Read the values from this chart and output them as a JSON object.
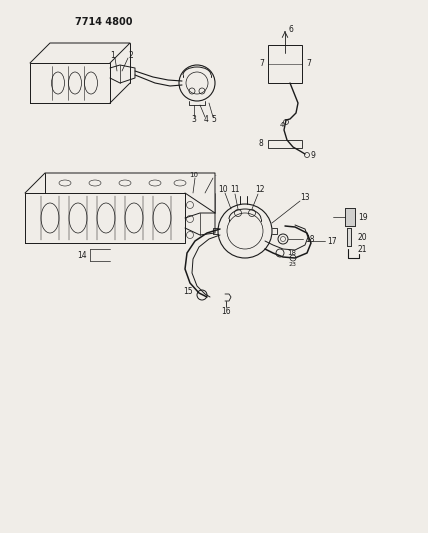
{
  "title": "7714 4800",
  "bg_color": "#f0ede8",
  "line_color": "#1a1a1a",
  "fig_width": 4.28,
  "fig_height": 5.33,
  "dpi": 100
}
